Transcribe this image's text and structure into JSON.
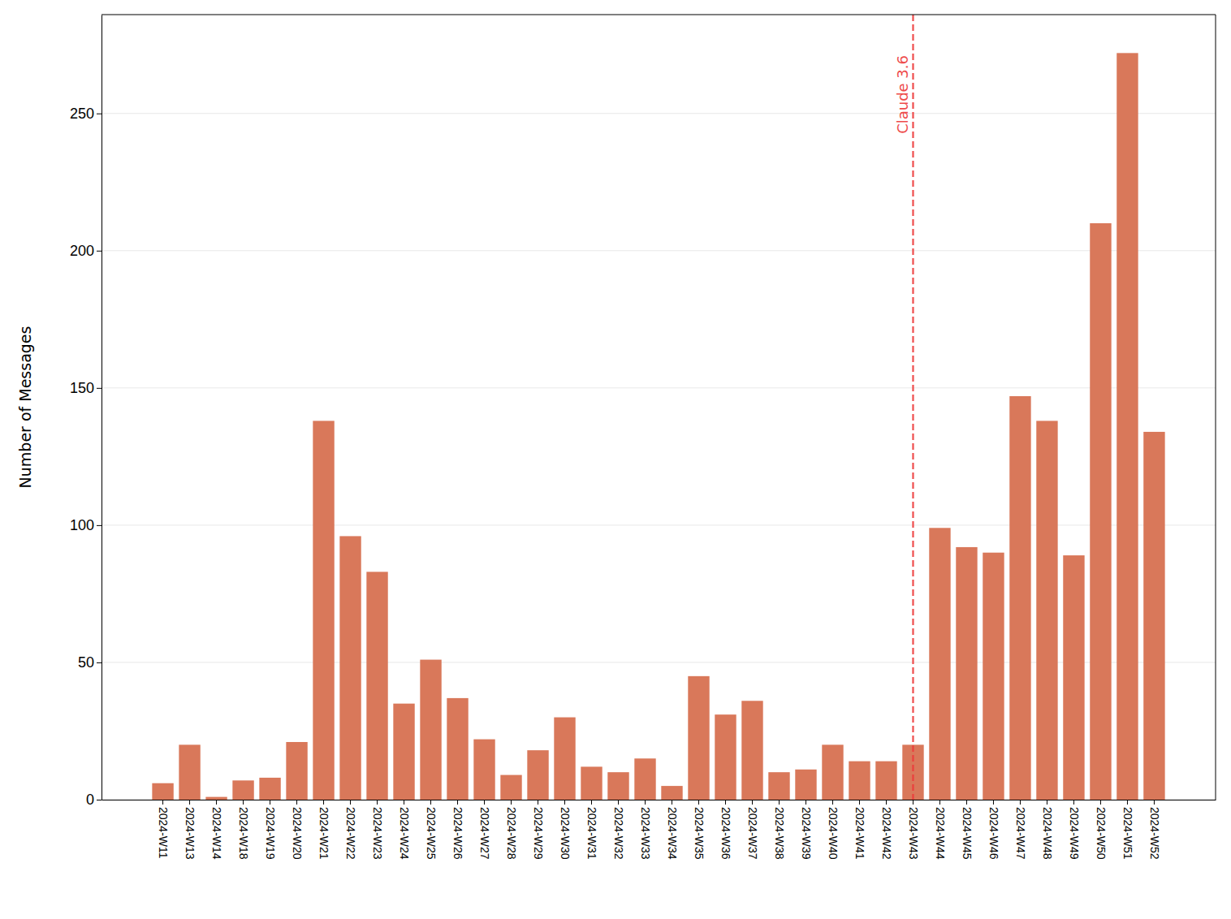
{
  "chart_data": {
    "type": "bar",
    "y_label": "Number of Messages",
    "categories": [
      "2024-W11",
      "2024-W13",
      "2024-W14",
      "2024-W18",
      "2024-W19",
      "2024-W20",
      "2024-W21",
      "2024-W22",
      "2024-W23",
      "2024-W24",
      "2024-W25",
      "2024-W26",
      "2024-W27",
      "2024-W28",
      "2024-W29",
      "2024-W30",
      "2024-W31",
      "2024-W32",
      "2024-W33",
      "2024-W34",
      "2024-W35",
      "2024-W36",
      "2024-W37",
      "2024-W38",
      "2024-W39",
      "2024-W40",
      "2024-W41",
      "2024-W42",
      "2024-W43",
      "2024-W44",
      "2024-W45",
      "2024-W46",
      "2024-W47",
      "2024-W48",
      "2024-W49",
      "2024-W50",
      "2024-W51",
      "2024-W52"
    ],
    "values": [
      6,
      20,
      1,
      7,
      8,
      21,
      138,
      96,
      83,
      35,
      51,
      37,
      22,
      9,
      18,
      30,
      12,
      10,
      15,
      5,
      45,
      31,
      36,
      10,
      11,
      20,
      14,
      14,
      20,
      99,
      92,
      90,
      147,
      138,
      89,
      210,
      272,
      134
    ],
    "color": "#d9785a",
    "ylim": [
      0,
      286
    ],
    "yticks": [
      0,
      50,
      100,
      150,
      200,
      250
    ],
    "grid": true,
    "annotations": [
      {
        "x": "2024-W43",
        "label": "Claude 3.6"
      }
    ]
  }
}
